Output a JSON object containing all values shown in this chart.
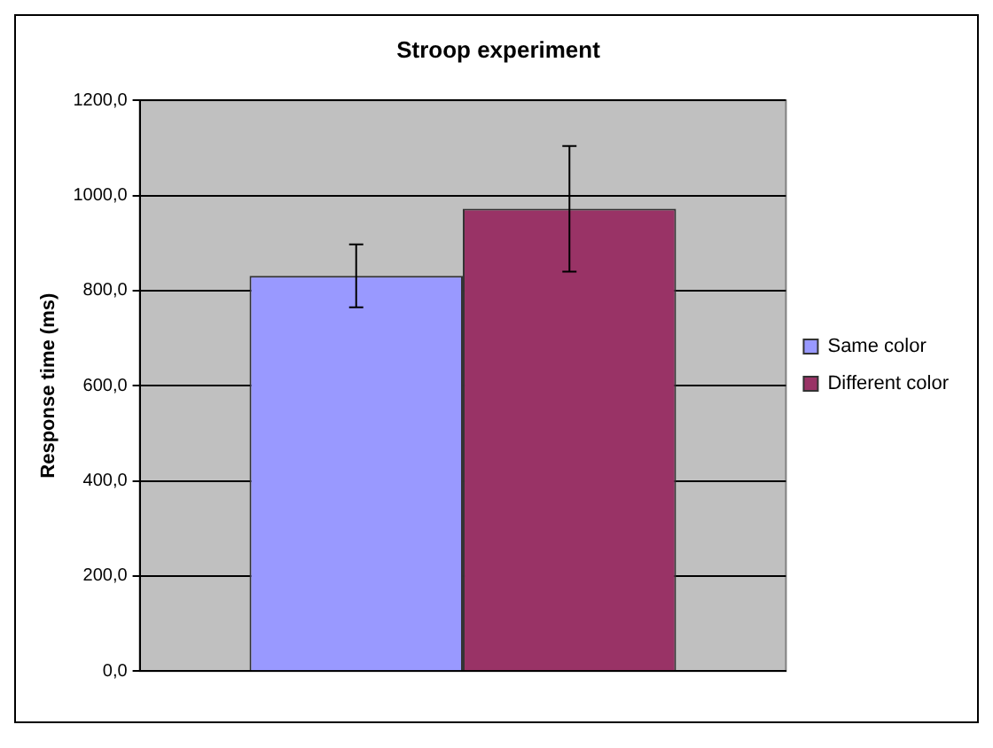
{
  "chart_data": {
    "type": "bar",
    "title": "Stroop experiment",
    "ylabel": "Response time (ms)",
    "categories": [
      null
    ],
    "series": [
      {
        "name": "Same color",
        "color": "#9999ff",
        "values": [
          831
        ],
        "errors": [
          66
        ]
      },
      {
        "name": "Different color",
        "color": "#993366",
        "values": [
          972
        ],
        "errors": [
          132
        ]
      }
    ],
    "ylim": [
      0,
      1200
    ],
    "yticks": [
      {
        "value": 0,
        "label": "0,0"
      },
      {
        "value": 200,
        "label": "200,0"
      },
      {
        "value": 400,
        "label": "400,0"
      },
      {
        "value": 600,
        "label": "600,0"
      },
      {
        "value": 800,
        "label": "800,0"
      },
      {
        "value": 1000,
        "label": "1000,0"
      },
      {
        "value": 1200,
        "label": "1200,0"
      }
    ],
    "grid": "y",
    "legend": "right"
  }
}
